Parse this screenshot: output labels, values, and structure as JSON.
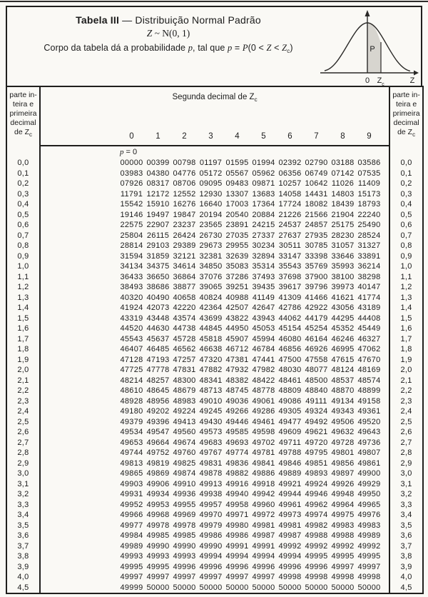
{
  "page": {
    "title_bold": "Tabela III",
    "title_rest": " — Distribuição Normal Padrão",
    "subtitle": [
      {
        "t": "Z",
        "s": "i"
      },
      {
        "t": " ~ N(0, 1)",
        "s": "n"
      }
    ],
    "description": [
      {
        "t": "Corpo da tabela dá a probabilidade ",
        "s": "n"
      },
      {
        "t": "p",
        "s": "i"
      },
      {
        "t": ", tal que ",
        "s": "n"
      },
      {
        "t": "p",
        "s": "i"
      },
      {
        "t": " = ",
        "s": "n"
      },
      {
        "t": "P",
        "s": "i"
      },
      {
        "t": "(0 < ",
        "s": "n"
      },
      {
        "t": "Z",
        "s": "i"
      },
      {
        "t": " < ",
        "s": "n"
      },
      {
        "t": "Z",
        "s": "i"
      },
      {
        "t": "c",
        "s": "sub"
      },
      {
        "t": ")",
        "s": "n"
      }
    ]
  },
  "curve": {
    "area_label": "P",
    "origin_label": "0",
    "zc_base": "Z",
    "zc_sub": "c",
    "axis_label": "Z",
    "shade_color": "#d7d5cf",
    "stroke_color": "#2a2927"
  },
  "table": {
    "span_header": [
      {
        "t": "Segunda decimal de Z",
        "s": "n"
      },
      {
        "t": "c",
        "s": "sub"
      }
    ],
    "corner_header": [
      {
        "t": "parte in-",
        "s": "n",
        "br": true
      },
      {
        "t": "teira e",
        "s": "n",
        "br": true
      },
      {
        "t": "primeira",
        "s": "n",
        "br": true
      },
      {
        "t": "decimal",
        "s": "n",
        "br": true
      },
      {
        "t": "de Z",
        "s": "n"
      },
      {
        "t": "c",
        "s": "sub"
      }
    ],
    "col_headers": [
      "0",
      "1",
      "2",
      "3",
      "4",
      "5",
      "6",
      "7",
      "8",
      "9"
    ],
    "p_note": [
      {
        "t": "p",
        "s": "i"
      },
      {
        "t": " = 0",
        "s": "n"
      }
    ],
    "rows": [
      {
        "z": "0,0",
        "v": [
          "00000",
          "00399",
          "00798",
          "01197",
          "01595",
          "01994",
          "02392",
          "02790",
          "03188",
          "03586"
        ]
      },
      {
        "z": "0,1",
        "v": [
          "03983",
          "04380",
          "04776",
          "05172",
          "05567",
          "05962",
          "06356",
          "06749",
          "07142",
          "07535"
        ]
      },
      {
        "z": "0,2",
        "v": [
          "07926",
          "08317",
          "08706",
          "09095",
          "09483",
          "09871",
          "10257",
          "10642",
          "11026",
          "11409"
        ]
      },
      {
        "z": "0,3",
        "v": [
          "11791",
          "12172",
          "12552",
          "12930",
          "13307",
          "13683",
          "14058",
          "14431",
          "14803",
          "15173"
        ]
      },
      {
        "z": "0,4",
        "v": [
          "15542",
          "15910",
          "16276",
          "16640",
          "17003",
          "17364",
          "17724",
          "18082",
          "18439",
          "18793"
        ]
      },
      {
        "z": "0,5",
        "v": [
          "19146",
          "19497",
          "19847",
          "20194",
          "20540",
          "20884",
          "21226",
          "21566",
          "21904",
          "22240"
        ]
      },
      {
        "z": "0,6",
        "v": [
          "22575",
          "22907",
          "23237",
          "23565",
          "23891",
          "24215",
          "24537",
          "24857",
          "25175",
          "25490"
        ]
      },
      {
        "z": "0,7",
        "v": [
          "25804",
          "26115",
          "26424",
          "26730",
          "27035",
          "27337",
          "27637",
          "27935",
          "28230",
          "28524"
        ]
      },
      {
        "z": "0,8",
        "v": [
          "28814",
          "29103",
          "29389",
          "29673",
          "29955",
          "30234",
          "30511",
          "30785",
          "31057",
          "31327"
        ]
      },
      {
        "z": "0,9",
        "v": [
          "31594",
          "31859",
          "32121",
          "32381",
          "32639",
          "32894",
          "33147",
          "33398",
          "33646",
          "33891"
        ]
      },
      {
        "z": "1,0",
        "v": [
          "34134",
          "34375",
          "34614",
          "34850",
          "35083",
          "35314",
          "35543",
          "35769",
          "35993",
          "36214"
        ]
      },
      {
        "z": "1,1",
        "v": [
          "36433",
          "36650",
          "36864",
          "37076",
          "37286",
          "37493",
          "37698",
          "37900",
          "38100",
          "38298"
        ]
      },
      {
        "z": "1,2",
        "v": [
          "38493",
          "38686",
          "38877",
          "39065",
          "39251",
          "39435",
          "39617",
          "39796",
          "39973",
          "40147"
        ]
      },
      {
        "z": "1,3",
        "v": [
          "40320",
          "40490",
          "40658",
          "40824",
          "40988",
          "41149",
          "41309",
          "41466",
          "41621",
          "41774"
        ]
      },
      {
        "z": "1,4",
        "v": [
          "41924",
          "42073",
          "42220",
          "42364",
          "42507",
          "42647",
          "42786",
          "42922",
          "43056",
          "43189"
        ]
      },
      {
        "z": "1,5",
        "v": [
          "43319",
          "43448",
          "43574",
          "43699",
          "43822",
          "43943",
          "44062",
          "44179",
          "44295",
          "44408"
        ]
      },
      {
        "z": "1,6",
        "v": [
          "44520",
          "44630",
          "44738",
          "44845",
          "44950",
          "45053",
          "45154",
          "45254",
          "45352",
          "45449"
        ]
      },
      {
        "z": "1,7",
        "v": [
          "45543",
          "45637",
          "45728",
          "45818",
          "45907",
          "45994",
          "46080",
          "46164",
          "46246",
          "46327"
        ]
      },
      {
        "z": "1,8",
        "v": [
          "46407",
          "46485",
          "46562",
          "46638",
          "46712",
          "46784",
          "46856",
          "46926",
          "46995",
          "47062"
        ]
      },
      {
        "z": "1,9",
        "v": [
          "47128",
          "47193",
          "47257",
          "47320",
          "47381",
          "47441",
          "47500",
          "47558",
          "47615",
          "47670"
        ]
      },
      {
        "z": "2,0",
        "v": [
          "47725",
          "47778",
          "47831",
          "47882",
          "47932",
          "47982",
          "48030",
          "48077",
          "48124",
          "48169"
        ]
      },
      {
        "z": "2,1",
        "v": [
          "48214",
          "48257",
          "48300",
          "48341",
          "48382",
          "48422",
          "48461",
          "48500",
          "48537",
          "48574"
        ]
      },
      {
        "z": "2,2",
        "v": [
          "48610",
          "48645",
          "48679",
          "48713",
          "48745",
          "48778",
          "48809",
          "48840",
          "48870",
          "48899"
        ]
      },
      {
        "z": "2,3",
        "v": [
          "48928",
          "48956",
          "48983",
          "49010",
          "49036",
          "49061",
          "49086",
          "49111",
          "49134",
          "49158"
        ]
      },
      {
        "z": "2,4",
        "v": [
          "49180",
          "49202",
          "49224",
          "49245",
          "49266",
          "49286",
          "49305",
          "49324",
          "49343",
          "49361"
        ]
      },
      {
        "z": "2,5",
        "v": [
          "49379",
          "49396",
          "49413",
          "49430",
          "49446",
          "49461",
          "49477",
          "49492",
          "49506",
          "49520"
        ]
      },
      {
        "z": "2,6",
        "v": [
          "49534",
          "49547",
          "49560",
          "49573",
          "49585",
          "49598",
          "49609",
          "49621",
          "49632",
          "49643"
        ]
      },
      {
        "z": "2,7",
        "v": [
          "49653",
          "49664",
          "49674",
          "49683",
          "49693",
          "49702",
          "49711",
          "49720",
          "49728",
          "49736"
        ]
      },
      {
        "z": "2,8",
        "v": [
          "49744",
          "49752",
          "49760",
          "49767",
          "49774",
          "49781",
          "49788",
          "49795",
          "49801",
          "49807"
        ]
      },
      {
        "z": "2,9",
        "v": [
          "49813",
          "49819",
          "49825",
          "49831",
          "49836",
          "49841",
          "49846",
          "49851",
          "49856",
          "49861"
        ]
      },
      {
        "z": "3,0",
        "v": [
          "49865",
          "49869",
          "49874",
          "49878",
          "49882",
          "49886",
          "49889",
          "49893",
          "49897",
          "49900"
        ]
      },
      {
        "z": "3,1",
        "v": [
          "49903",
          "49906",
          "49910",
          "49913",
          "49916",
          "49918",
          "49921",
          "49924",
          "49926",
          "49929"
        ]
      },
      {
        "z": "3,2",
        "v": [
          "49931",
          "49934",
          "49936",
          "49938",
          "49940",
          "49942",
          "49944",
          "49946",
          "49948",
          "49950"
        ]
      },
      {
        "z": "3,3",
        "v": [
          "49952",
          "49953",
          "49955",
          "49957",
          "49958",
          "49960",
          "49961",
          "49962",
          "49964",
          "49965"
        ]
      },
      {
        "z": "3,4",
        "v": [
          "49966",
          "49968",
          "49969",
          "49970",
          "49971",
          "49972",
          "49973",
          "49974",
          "49975",
          "49976"
        ]
      },
      {
        "z": "3,5",
        "v": [
          "49977",
          "49978",
          "49978",
          "49979",
          "49980",
          "49981",
          "49981",
          "49982",
          "49983",
          "49983"
        ]
      },
      {
        "z": "3,6",
        "v": [
          "49984",
          "49985",
          "49985",
          "49986",
          "49986",
          "49987",
          "49987",
          "49988",
          "49988",
          "49989"
        ]
      },
      {
        "z": "3,7",
        "v": [
          "49989",
          "49990",
          "49990",
          "49990",
          "49991",
          "49991",
          "49992",
          "49992",
          "49992",
          "49992"
        ]
      },
      {
        "z": "3,8",
        "v": [
          "49993",
          "49993",
          "49993",
          "49994",
          "49994",
          "49994",
          "49994",
          "49995",
          "49995",
          "49995"
        ]
      },
      {
        "z": "3,9",
        "v": [
          "49995",
          "49995",
          "49996",
          "49996",
          "49996",
          "49996",
          "49996",
          "49996",
          "49997",
          "49997"
        ]
      },
      {
        "z": "4,0",
        "v": [
          "49997",
          "49997",
          "49997",
          "49997",
          "49997",
          "49997",
          "49998",
          "49998",
          "49998",
          "49998"
        ]
      },
      {
        "z": "4,5",
        "v": [
          "49999",
          "50000",
          "50000",
          "50000",
          "50000",
          "50000",
          "50000",
          "50000",
          "50000",
          "50000"
        ]
      }
    ]
  }
}
